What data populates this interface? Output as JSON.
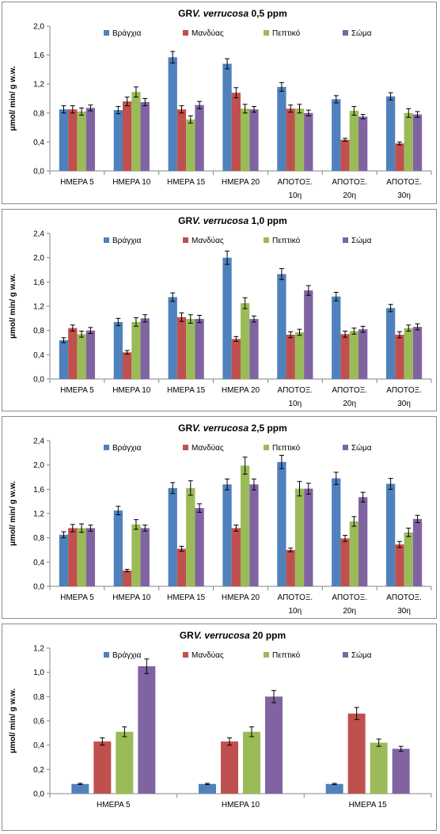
{
  "legend_colors": [
    "#4f81bd",
    "#c0504d",
    "#9bbb59",
    "#8064a2"
  ],
  "chart_data": [
    {
      "type": "bar",
      "title_prefix": "GR",
      "title_species": "V. verrucosa",
      "title_suffix": "0,5 ppm",
      "ylabel": "μmol/ min/ g w.w.",
      "ylim": [
        0,
        2.0
      ],
      "yticks": [
        "0,0",
        "0,4",
        "0,8",
        "1,2",
        "1,6",
        "2,0"
      ],
      "ytick_values": [
        0,
        0.4,
        0.8,
        1.2,
        1.6,
        2.0
      ],
      "categories": [
        [
          "ΗΜΕΡΑ 5"
        ],
        [
          "ΗΜΕΡΑ 10"
        ],
        [
          "ΗΜΕΡΑ 15"
        ],
        [
          "ΗΜΕΡΑ 20"
        ],
        [
          "ΑΠΟΤΟΞ.",
          "10η"
        ],
        [
          "ΑΠΟΤΟΞ.",
          "20η"
        ],
        [
          "ΑΠΟΤΟΞ.",
          "30η"
        ]
      ],
      "series": [
        {
          "name": "Βράγχια",
          "values": [
            0.85,
            0.84,
            1.57,
            1.48,
            1.16,
            0.99,
            1.03
          ],
          "errors": [
            0.05,
            0.05,
            0.08,
            0.07,
            0.06,
            0.05,
            0.05
          ]
        },
        {
          "name": "Μανδύας",
          "values": [
            0.85,
            0.96,
            0.85,
            1.08,
            0.86,
            0.43,
            0.38
          ],
          "errors": [
            0.05,
            0.06,
            0.05,
            0.07,
            0.05,
            0.02,
            0.02
          ]
        },
        {
          "name": "Πεπτικό",
          "values": [
            0.82,
            1.09,
            0.71,
            0.86,
            0.86,
            0.83,
            0.8
          ],
          "errors": [
            0.05,
            0.07,
            0.05,
            0.06,
            0.06,
            0.06,
            0.06
          ]
        },
        {
          "name": "Σώμα",
          "values": [
            0.87,
            0.95,
            0.91,
            0.85,
            0.8,
            0.75,
            0.78
          ],
          "errors": [
            0.04,
            0.05,
            0.05,
            0.04,
            0.04,
            0.03,
            0.04
          ]
        }
      ],
      "grid": false,
      "legend": "top"
    },
    {
      "type": "bar",
      "title_prefix": "GR",
      "title_species": "V. verrucosa",
      "title_suffix": "1,0 ppm",
      "ylabel": "μmol/ min/ g w.w.",
      "ylim": [
        0,
        2.4
      ],
      "yticks": [
        "0,0",
        "0,4",
        "0,8",
        "1,2",
        "1,6",
        "2,0",
        "2,4"
      ],
      "ytick_values": [
        0,
        0.4,
        0.8,
        1.2,
        1.6,
        2.0,
        2.4
      ],
      "categories": [
        [
          "ΗΜΕΡΑ 5"
        ],
        [
          "ΗΜΕΡΑ 10"
        ],
        [
          "ΗΜΕΡΑ 15"
        ],
        [
          "ΗΜΕΡΑ 20"
        ],
        [
          "ΑΠΟΤΟΞ.",
          "10η"
        ],
        [
          "ΑΠΟΤΟΞ.",
          "20η"
        ],
        [
          "ΑΠΟΤΟΞ.",
          "30η"
        ]
      ],
      "series": [
        {
          "name": "Βράγχια",
          "values": [
            0.64,
            0.94,
            1.35,
            2.0,
            1.73,
            1.36,
            1.17
          ],
          "errors": [
            0.04,
            0.06,
            0.07,
            0.11,
            0.09,
            0.07,
            0.06
          ]
        },
        {
          "name": "Μανδύας",
          "values": [
            0.84,
            0.44,
            1.02,
            0.66,
            0.73,
            0.74,
            0.73
          ],
          "errors": [
            0.05,
            0.03,
            0.07,
            0.04,
            0.05,
            0.05,
            0.05
          ]
        },
        {
          "name": "Πεπτικό",
          "values": [
            0.74,
            0.94,
            0.99,
            1.25,
            0.77,
            0.79,
            0.84
          ],
          "errors": [
            0.05,
            0.07,
            0.07,
            0.09,
            0.05,
            0.05,
            0.05
          ]
        },
        {
          "name": "Σώμα",
          "values": [
            0.8,
            1.0,
            0.99,
            0.99,
            1.46,
            0.82,
            0.86
          ],
          "errors": [
            0.05,
            0.06,
            0.06,
            0.05,
            0.08,
            0.05,
            0.05
          ]
        }
      ],
      "grid": false,
      "legend": "top"
    },
    {
      "type": "bar",
      "title_prefix": "GR",
      "title_species": "V. verrucosa",
      "title_suffix": "2,5 ppm",
      "ylabel": "μmol/ min/ g w.w.",
      "ylim": [
        0,
        2.4
      ],
      "yticks": [
        "0,0",
        "0,4",
        "0,8",
        "1,2",
        "1,6",
        "2,0",
        "2,4"
      ],
      "ytick_values": [
        0,
        0.4,
        0.8,
        1.2,
        1.6,
        2.0,
        2.4
      ],
      "categories": [
        [
          "ΗΜΕΡΑ 5"
        ],
        [
          "ΗΜΕΡΑ 10"
        ],
        [
          "ΗΜΕΡΑ 15"
        ],
        [
          "ΗΜΕΡΑ 20"
        ],
        [
          "ΑΠΟΤΟΞ.",
          "10η"
        ],
        [
          "ΑΠΟΤΟΞ.",
          "20η"
        ],
        [
          "ΑΠΟΤΟΞ.",
          "30η"
        ]
      ],
      "series": [
        {
          "name": "Βράγχια",
          "values": [
            0.85,
            1.25,
            1.62,
            1.68,
            2.05,
            1.78,
            1.69
          ],
          "errors": [
            0.05,
            0.07,
            0.09,
            0.09,
            0.11,
            0.1,
            0.09
          ]
        },
        {
          "name": "Μανδύας",
          "values": [
            0.96,
            0.26,
            0.62,
            0.96,
            0.6,
            0.79,
            0.69
          ],
          "errors": [
            0.06,
            0.02,
            0.04,
            0.05,
            0.03,
            0.05,
            0.05
          ]
        },
        {
          "name": "Πεπτικό",
          "values": [
            0.96,
            1.02,
            1.62,
            1.99,
            1.61,
            1.07,
            0.89
          ],
          "errors": [
            0.07,
            0.08,
            0.12,
            0.14,
            0.12,
            0.08,
            0.07
          ]
        },
        {
          "name": "Σώμα",
          "values": [
            0.96,
            0.96,
            1.29,
            1.68,
            1.61,
            1.47,
            1.11
          ],
          "errors": [
            0.05,
            0.05,
            0.07,
            0.09,
            0.09,
            0.08,
            0.06
          ]
        }
      ],
      "grid": false,
      "legend": "top"
    },
    {
      "type": "bar",
      "title_prefix": "GR",
      "title_species": "V. verrucosa",
      "title_suffix": "20 ppm",
      "ylabel": "μmol/ min/ g w.w.",
      "ylim": [
        0,
        1.2
      ],
      "yticks": [
        "0,0",
        "0,2",
        "0,4",
        "0,6",
        "0,8",
        "1,0",
        "1,2"
      ],
      "ytick_values": [
        0,
        0.2,
        0.4,
        0.6,
        0.8,
        1.0,
        1.2
      ],
      "categories": [
        [
          "ΗΜΕΡΑ 5"
        ],
        [
          "ΗΜΕΡΑ 10"
        ],
        [
          "ΗΜΕΡΑ 15"
        ]
      ],
      "series": [
        {
          "name": "Βράγχια",
          "values": [
            0.08,
            0.08,
            0.08
          ],
          "errors": [
            0.005,
            0.005,
            0.005
          ]
        },
        {
          "name": "Μανδύας",
          "values": [
            0.43,
            0.43,
            0.66
          ],
          "errors": [
            0.03,
            0.03,
            0.05
          ]
        },
        {
          "name": "Πεπτικό",
          "values": [
            0.51,
            0.51,
            0.42
          ],
          "errors": [
            0.04,
            0.04,
            0.03
          ]
        },
        {
          "name": "Σώμα",
          "values": [
            1.05,
            0.8,
            0.37
          ],
          "errors": [
            0.06,
            0.05,
            0.02
          ]
        }
      ],
      "grid": false,
      "legend": "top"
    }
  ]
}
